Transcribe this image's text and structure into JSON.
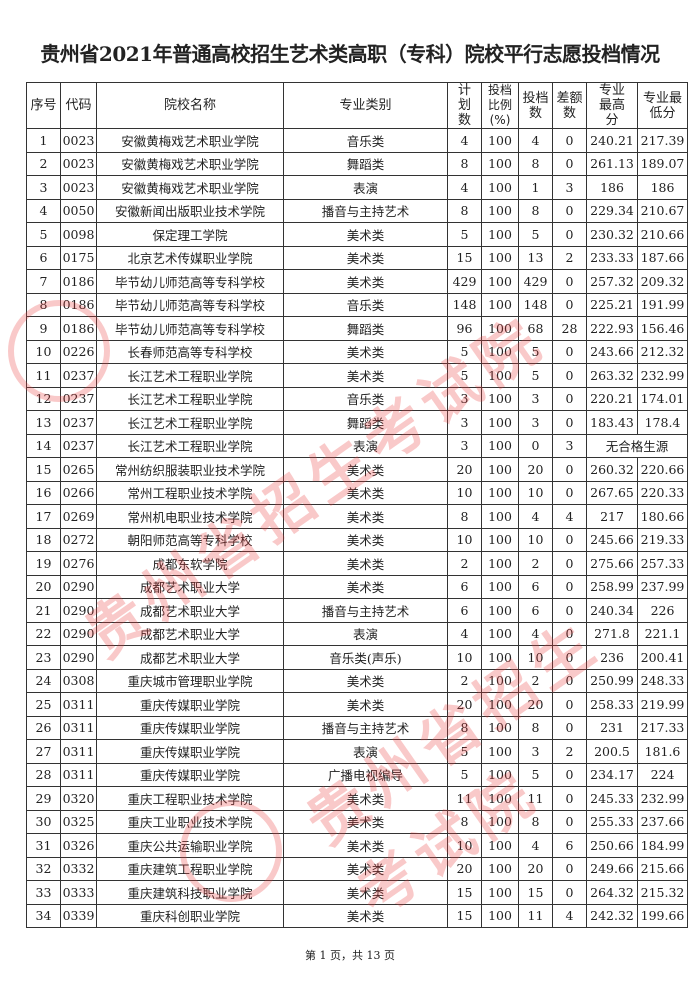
{
  "title": "贵州省2021年普通高校招生艺术类高职（专科）院校平行志愿投档情况",
  "headers": [
    "序号",
    "代码",
    "院校名称",
    "专业类别",
    "计划数",
    "投档比例(%)",
    "投档数",
    "差额数",
    "专业最高分",
    "专业最低分"
  ],
  "rows": [
    [
      "1",
      "0023",
      "安徽黄梅戏艺术职业学院",
      "音乐类",
      "4",
      "100",
      "4",
      "0",
      "240.21",
      "217.39"
    ],
    [
      "2",
      "0023",
      "安徽黄梅戏艺术职业学院",
      "舞蹈类",
      "8",
      "100",
      "8",
      "0",
      "261.13",
      "189.07"
    ],
    [
      "3",
      "0023",
      "安徽黄梅戏艺术职业学院",
      "表演",
      "4",
      "100",
      "1",
      "3",
      "186",
      "186"
    ],
    [
      "4",
      "0050",
      "安徽新闻出版职业技术学院",
      "播音与主持艺术",
      "8",
      "100",
      "8",
      "0",
      "229.34",
      "210.67"
    ],
    [
      "5",
      "0098",
      "保定理工学院",
      "美术类",
      "5",
      "100",
      "5",
      "0",
      "230.32",
      "210.66"
    ],
    [
      "6",
      "0175",
      "北京艺术传媒职业学院",
      "美术类",
      "15",
      "100",
      "13",
      "2",
      "233.33",
      "187.66"
    ],
    [
      "7",
      "0186",
      "毕节幼儿师范高等专科学校",
      "美术类",
      "429",
      "100",
      "429",
      "0",
      "257.32",
      "209.32"
    ],
    [
      "8",
      "0186",
      "毕节幼儿师范高等专科学校",
      "音乐类",
      "148",
      "100",
      "148",
      "0",
      "225.21",
      "191.99"
    ],
    [
      "9",
      "0186",
      "毕节幼儿师范高等专科学校",
      "舞蹈类",
      "96",
      "100",
      "68",
      "28",
      "222.93",
      "156.46"
    ],
    [
      "10",
      "0226",
      "长春师范高等专科学校",
      "美术类",
      "5",
      "100",
      "5",
      "0",
      "243.66",
      "212.32"
    ],
    [
      "11",
      "0237",
      "长江艺术工程职业学院",
      "美术类",
      "5",
      "100",
      "5",
      "0",
      "263.32",
      "232.99"
    ],
    [
      "12",
      "0237",
      "长江艺术工程职业学院",
      "音乐类",
      "3",
      "100",
      "3",
      "0",
      "220.21",
      "174.01"
    ],
    [
      "13",
      "0237",
      "长江艺术工程职业学院",
      "舞蹈类",
      "3",
      "100",
      "3",
      "0",
      "183.43",
      "178.4"
    ],
    [
      "14",
      "0237",
      "长江艺术工程职业学院",
      "表演",
      "3",
      "100",
      "0",
      "3",
      "无合格生源",
      ""
    ],
    [
      "15",
      "0265",
      "常州纺织服装职业技术学院",
      "美术类",
      "20",
      "100",
      "20",
      "0",
      "260.32",
      "220.66"
    ],
    [
      "16",
      "0266",
      "常州工程职业技术学院",
      "美术类",
      "10",
      "100",
      "10",
      "0",
      "267.65",
      "220.33"
    ],
    [
      "17",
      "0269",
      "常州机电职业技术学院",
      "美术类",
      "8",
      "100",
      "4",
      "4",
      "217",
      "180.66"
    ],
    [
      "18",
      "0272",
      "朝阳师范高等专科学校",
      "美术类",
      "10",
      "100",
      "10",
      "0",
      "245.66",
      "219.33"
    ],
    [
      "19",
      "0276",
      "成都东软学院",
      "美术类",
      "2",
      "100",
      "2",
      "0",
      "275.66",
      "257.33"
    ],
    [
      "20",
      "0290",
      "成都艺术职业大学",
      "美术类",
      "6",
      "100",
      "6",
      "0",
      "258.99",
      "237.99"
    ],
    [
      "21",
      "0290",
      "成都艺术职业大学",
      "播音与主持艺术",
      "6",
      "100",
      "6",
      "0",
      "240.34",
      "226"
    ],
    [
      "22",
      "0290",
      "成都艺术职业大学",
      "表演",
      "4",
      "100",
      "4",
      "0",
      "271.8",
      "221.1"
    ],
    [
      "23",
      "0290",
      "成都艺术职业大学",
      "音乐类(声乐)",
      "10",
      "100",
      "10",
      "0",
      "236",
      "200.41"
    ],
    [
      "24",
      "0308",
      "重庆城市管理职业学院",
      "美术类",
      "2",
      "100",
      "2",
      "0",
      "250.99",
      "248.33"
    ],
    [
      "25",
      "0311",
      "重庆传媒职业学院",
      "美术类",
      "20",
      "100",
      "20",
      "0",
      "258.33",
      "219.99"
    ],
    [
      "26",
      "0311",
      "重庆传媒职业学院",
      "播音与主持艺术",
      "8",
      "100",
      "8",
      "0",
      "231",
      "217.33"
    ],
    [
      "27",
      "0311",
      "重庆传媒职业学院",
      "表演",
      "5",
      "100",
      "3",
      "2",
      "200.5",
      "181.6"
    ],
    [
      "28",
      "0311",
      "重庆传媒职业学院",
      "广播电视编导",
      "5",
      "100",
      "5",
      "0",
      "234.17",
      "224"
    ],
    [
      "29",
      "0320",
      "重庆工程职业技术学院",
      "美术类",
      "11",
      "100",
      "11",
      "0",
      "245.33",
      "232.99"
    ],
    [
      "30",
      "0325",
      "重庆工业职业技术学院",
      "美术类",
      "8",
      "100",
      "8",
      "0",
      "255.33",
      "237.66"
    ],
    [
      "31",
      "0326",
      "重庆公共运输职业学院",
      "美术类",
      "10",
      "100",
      "4",
      "6",
      "250.66",
      "184.99"
    ],
    [
      "32",
      "0332",
      "重庆建筑工程职业学院",
      "美术类",
      "20",
      "100",
      "20",
      "0",
      "249.66",
      "215.66"
    ],
    [
      "33",
      "0333",
      "重庆建筑科技职业学院",
      "美术类",
      "15",
      "100",
      "15",
      "0",
      "264.32",
      "215.32"
    ],
    [
      "34",
      "0339",
      "重庆科创职业学院",
      "美术类",
      "15",
      "100",
      "11",
      "4",
      "242.32",
      "199.66"
    ]
  ],
  "footer": "第 1 页，共 13 页",
  "watermark": "贵州省招生考试院",
  "watermark_color": "#eb3c3c"
}
